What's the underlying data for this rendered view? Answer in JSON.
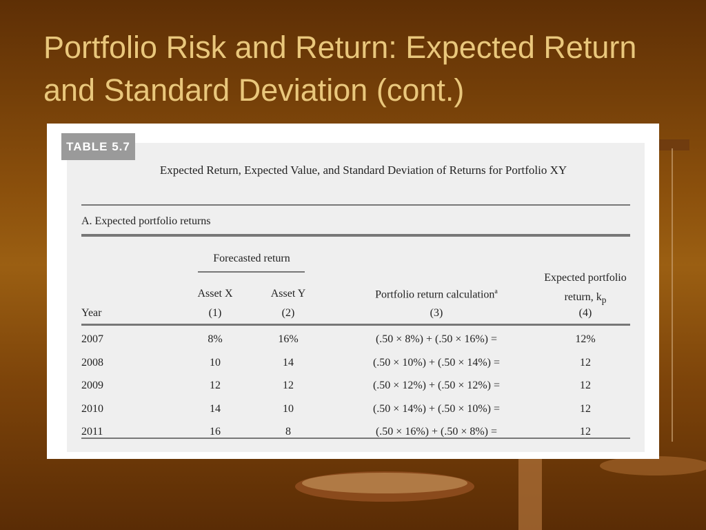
{
  "slide": {
    "title": "Portfolio Risk and Return: Expected Return and Standard Deviation (cont.)"
  },
  "table": {
    "label": "TABLE 5.7",
    "caption": "Expected Return, Expected Value, and Standard Deviation of Returns for Portfolio XY",
    "section": "A. Expected portfolio returns",
    "group_header": "Forecasted return",
    "year_header": "Year",
    "columns": [
      {
        "name": "Asset X",
        "number": "(1)"
      },
      {
        "name": "Asset Y",
        "number": "(2)"
      },
      {
        "name": "Portfolio return calculation",
        "note": "a",
        "number": "(3)"
      },
      {
        "name": "Expected portfolio return, k",
        "subscript": "p",
        "number": "(4)"
      }
    ],
    "rows": [
      [
        "2007",
        "8%",
        "16%",
        "(.50 × 8%) + (.50 × 16%) =",
        "12%"
      ],
      [
        "2008",
        "10",
        "14",
        "(.50 × 10%) + (.50 × 14%) =",
        "12"
      ],
      [
        "2009",
        "12",
        "12",
        "(.50 × 12%) + (.50 × 12%) =",
        "12"
      ],
      [
        "2010",
        "14",
        "10",
        "(.50 × 14%) + (.50 × 10%) =",
        "12"
      ],
      [
        "2011",
        "16",
        "8",
        "(.50 × 16%) + (.50 × 8%) =",
        "12"
      ]
    ]
  }
}
